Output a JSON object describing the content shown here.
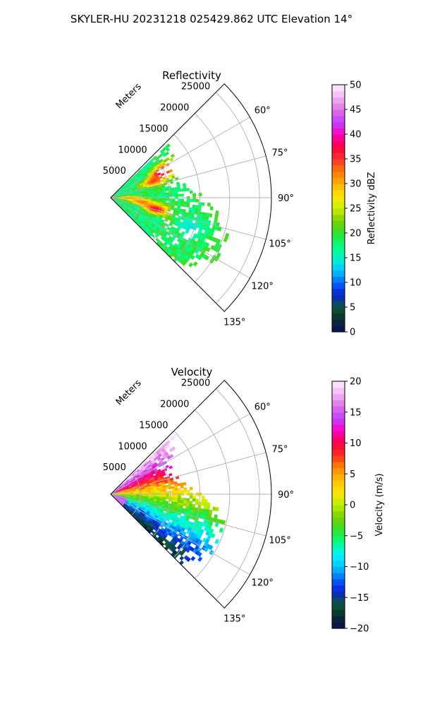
{
  "figure_title": "SKYLER-HU  20231218  025429.862 UTC Elevation 14°",
  "colors": {
    "reflectivity_cmap": [
      "#08115a",
      "#0a2a2e",
      "#0d5a3a",
      "#0b1fd6",
      "#0066ff",
      "#00c8ff",
      "#00f5c8",
      "#00ff80",
      "#2ee22e",
      "#7ad000",
      "#c8f000",
      "#ffe600",
      "#ffb000",
      "#ff7a00",
      "#ff3030",
      "#ff0040",
      "#ff00c0",
      "#c040ff",
      "#e070e8",
      "#f4b4f4",
      "#fdeefd"
    ],
    "velocity_cmap": [
      "#08115a",
      "#0a2a2e",
      "#0d5a3a",
      "#0b1fd6",
      "#0066ff",
      "#00c8ff",
      "#00f5ff",
      "#00ff80",
      "#2ee22e",
      "#7ad000",
      "#b8f000",
      "#ffe600",
      "#ffc000",
      "#ff8a00",
      "#ff3020",
      "#ff0040",
      "#ff00c0",
      "#c040ff",
      "#e070e8",
      "#f4b4f4",
      "#fdeefd"
    ],
    "grid": "#b0b0b0"
  },
  "chart_data": [
    {
      "type": "heatmap",
      "projection": "polar-sector",
      "title": "Reflectivity",
      "radial_axis_label": "Meters",
      "radial_ticks": [
        5000,
        10000,
        15000,
        20000,
        25000
      ],
      "radial_tick_labels": [
        "5000",
        "10000",
        "15000",
        "20000",
        "25000"
      ],
      "radial_range": [
        0,
        27000
      ],
      "angle_range_deg": [
        45,
        135
      ],
      "angle_ticks": [
        60,
        75,
        90,
        105,
        120,
        135
      ],
      "angle_tick_labels": [
        "60°",
        "75°",
        "90°",
        "105°",
        "120°",
        "135°"
      ],
      "grid": true,
      "colorbar": {
        "label": "Reflectivity dBZ",
        "range": [
          0,
          50
        ],
        "ticks": [
          0,
          5,
          10,
          15,
          20,
          25,
          30,
          35,
          40,
          45,
          50
        ],
        "tick_labels": [
          "0",
          "5",
          "10",
          "15",
          "20",
          "25",
          "30",
          "35",
          "40",
          "45",
          "50"
        ]
      },
      "field_features": [
        {
          "angle": 62,
          "range": 9500,
          "value": 41
        },
        {
          "angle": 68,
          "range": 7500,
          "value": 35
        },
        {
          "angle": 103,
          "range": 7500,
          "value": 38
        },
        {
          "angle": 97,
          "range": 5000,
          "value": 33
        },
        {
          "angle": 90,
          "range": 2500,
          "value": 32
        },
        {
          "angle": 80,
          "range": 12000,
          "value": 18
        },
        {
          "angle": 110,
          "range": 14000,
          "value": 14
        }
      ],
      "echo_extent_m": 19000,
      "background_value": 18
    },
    {
      "type": "heatmap",
      "projection": "polar-sector",
      "title": "Velocity",
      "radial_axis_label": "Meters",
      "radial_ticks": [
        5000,
        10000,
        15000,
        20000,
        25000
      ],
      "radial_tick_labels": [
        "5000",
        "10000",
        "15000",
        "20000",
        "25000"
      ],
      "radial_range": [
        0,
        27000
      ],
      "angle_range_deg": [
        45,
        135
      ],
      "angle_ticks": [
        60,
        75,
        90,
        105,
        120,
        135
      ],
      "angle_tick_labels": [
        "60°",
        "75°",
        "90°",
        "105°",
        "120°",
        "135°"
      ],
      "grid": true,
      "colorbar": {
        "label": "Velocity (m/s)",
        "range": [
          -20,
          20
        ],
        "ticks": [
          -20,
          -15,
          -10,
          -5,
          0,
          5,
          10,
          15,
          20
        ],
        "tick_labels": [
          "−20",
          "−15",
          "−10",
          "−5",
          "0",
          "5",
          "10",
          "15",
          "20"
        ]
      },
      "velocity_pattern": {
        "inbound_angle_deg": 55,
        "inbound_value": 15,
        "outbound_angle_deg": 125,
        "outbound_value": -14
      },
      "echo_extent_m": 19000
    }
  ]
}
